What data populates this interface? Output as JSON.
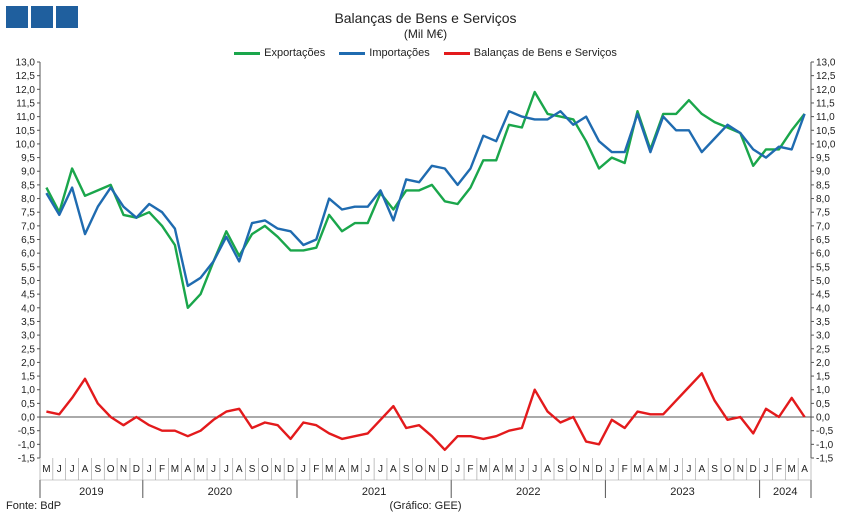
{
  "header": {
    "title": "Balanças de Bens e Serviços",
    "subtitle": "(Mil M€)"
  },
  "footer": {
    "source": "Fonte: BdP",
    "credit": "(Gráfico: GEE)"
  },
  "colors": {
    "exports": "#1aa64b",
    "imports": "#1f6bb0",
    "balance": "#e31a1c",
    "logo": "#1f5f9e"
  },
  "chart_data": {
    "type": "line",
    "title": "Balanças de Bens e Serviços",
    "subtitle": "(Mil M€)",
    "ylim": [
      -1.5,
      13.0
    ],
    "ytick_step": 0.5,
    "legend_position": "top-center",
    "grid": false,
    "dual_y_axis_mirrored": true,
    "month_labels": [
      "M",
      "J",
      "J",
      "A",
      "S",
      "O",
      "N",
      "D",
      "J",
      "F",
      "M",
      "A",
      "M",
      "J",
      "J",
      "A",
      "S",
      "O",
      "N",
      "D",
      "J",
      "F",
      "M",
      "A",
      "M",
      "J",
      "J",
      "A",
      "S",
      "O",
      "N",
      "D",
      "J",
      "F",
      "M",
      "A",
      "M",
      "J",
      "J",
      "A",
      "S",
      "O",
      "N",
      "D",
      "J",
      "F",
      "M",
      "A",
      "M",
      "J",
      "J",
      "A",
      "S",
      "O",
      "N",
      "D",
      "J",
      "F",
      "M",
      "A"
    ],
    "years": [
      {
        "label": "2019",
        "start": 0,
        "end": 7
      },
      {
        "label": "2020",
        "start": 8,
        "end": 19
      },
      {
        "label": "2021",
        "start": 20,
        "end": 31
      },
      {
        "label": "2022",
        "start": 32,
        "end": 43
      },
      {
        "label": "2023",
        "start": 44,
        "end": 55
      },
      {
        "label": "2024",
        "start": 56,
        "end": 59
      }
    ],
    "series": [
      {
        "name": "Exportações",
        "values": [
          8.4,
          7.5,
          9.1,
          8.1,
          8.3,
          8.5,
          7.4,
          7.3,
          7.5,
          7.0,
          6.3,
          4.0,
          4.5,
          5.7,
          6.8,
          5.9,
          6.7,
          7.0,
          6.6,
          6.1,
          6.1,
          6.2,
          7.4,
          6.8,
          7.1,
          7.1,
          8.2,
          7.6,
          8.3,
          8.3,
          8.5,
          7.9,
          7.8,
          8.4,
          9.4,
          9.4,
          10.7,
          10.6,
          11.9,
          11.1,
          11.0,
          10.9,
          10.1,
          9.1,
          9.5,
          9.3,
          11.2,
          9.8,
          11.1,
          11.1,
          11.6,
          11.1,
          10.8,
          10.6,
          10.4,
          9.2,
          9.8,
          9.8,
          10.5,
          11.1
        ]
      },
      {
        "name": "Importações",
        "values": [
          8.2,
          7.4,
          8.4,
          6.7,
          7.7,
          8.4,
          7.7,
          7.3,
          7.8,
          7.5,
          6.9,
          4.8,
          5.1,
          5.7,
          6.6,
          5.7,
          7.1,
          7.2,
          6.9,
          6.8,
          6.3,
          6.5,
          8.0,
          7.6,
          7.7,
          7.7,
          8.3,
          7.2,
          8.7,
          8.6,
          9.2,
          9.1,
          8.5,
          9.1,
          10.3,
          10.1,
          11.2,
          11.0,
          10.9,
          10.9,
          11.2,
          10.7,
          11.0,
          10.1,
          9.7,
          9.7,
          11.1,
          9.7,
          11.0,
          10.5,
          10.5,
          9.7,
          10.2,
          10.7,
          10.4,
          9.8,
          9.5,
          9.9,
          9.8,
          11.1
        ]
      },
      {
        "name": "Balanças de Bens e Serviços",
        "values": [
          0.2,
          0.1,
          0.7,
          1.4,
          0.5,
          0.0,
          -0.3,
          0.0,
          -0.3,
          -0.5,
          -0.5,
          -0.7,
          -0.5,
          -0.1,
          0.2,
          0.3,
          -0.4,
          -0.2,
          -0.3,
          -0.8,
          -0.2,
          -0.3,
          -0.6,
          -0.8,
          -0.7,
          -0.6,
          -0.1,
          0.4,
          -0.4,
          -0.3,
          -0.7,
          -1.2,
          -0.7,
          -0.7,
          -0.8,
          -0.7,
          -0.5,
          -0.4,
          1.0,
          0.2,
          -0.2,
          0.0,
          -0.9,
          -1.0,
          -0.1,
          -0.4,
          0.2,
          0.1,
          0.1,
          0.6,
          1.1,
          1.6,
          0.6,
          -0.1,
          0.0,
          -0.6,
          0.3,
          0.0,
          0.7,
          0.0
        ]
      }
    ]
  }
}
